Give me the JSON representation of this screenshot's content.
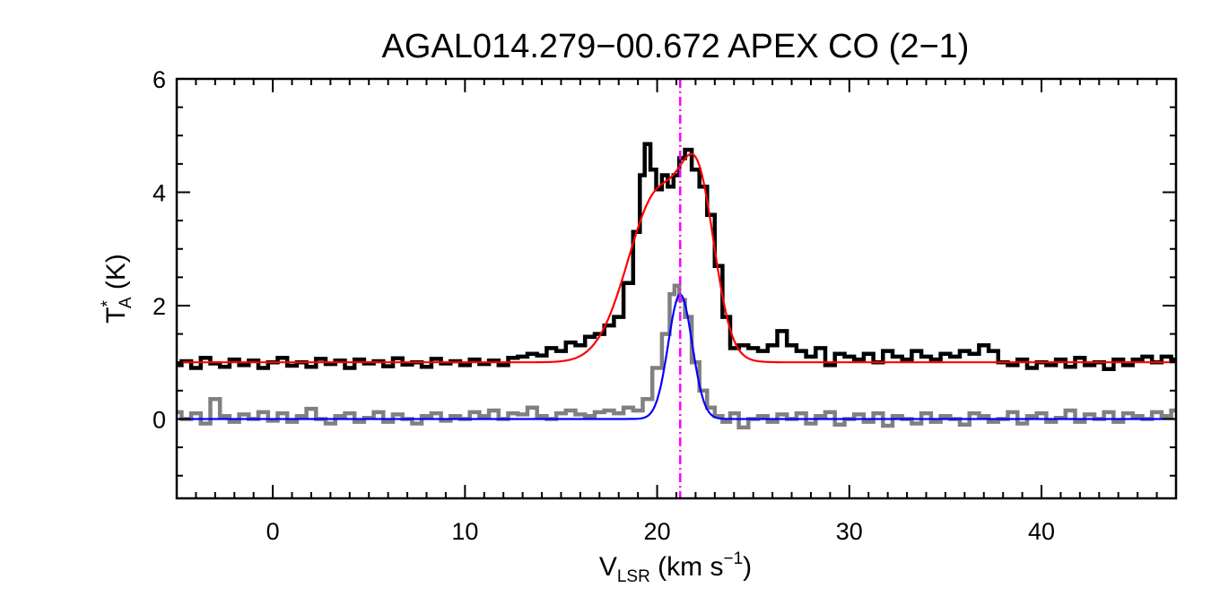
{
  "chart_data": {
    "type": "line",
    "title": "AGAL014.279−00.672  APEX CO (2−1)",
    "xlabel": {
      "main": "V",
      "sub": "LSR",
      "rest": " (km s",
      "sup": "−1",
      "close": ")"
    },
    "ylabel": {
      "main": "T",
      "sup": "*",
      "sub": "A",
      "rest": " (K)"
    },
    "xlim": [
      -5,
      47
    ],
    "ylim": [
      -1.4,
      6.0
    ],
    "xticks": [
      0,
      10,
      20,
      30,
      40
    ],
    "xtick_labels": [
      "0",
      "10",
      "20",
      "30",
      "40"
    ],
    "yticks": [
      0,
      2,
      4,
      6
    ],
    "ytick_labels": [
      "0",
      "2",
      "4",
      "6"
    ],
    "x_minor_step": 1,
    "y_minor_step": 0.5,
    "vline": {
      "x": 21.2,
      "color": "#ff00ff",
      "style": "dash-dot"
    },
    "series": [
      {
        "kind": "step",
        "color": "#000000",
        "points": [
          [
            -5,
            0.95
          ],
          [
            -4.5,
            1.02
          ],
          [
            -4,
            0.9
          ],
          [
            -3.5,
            1.08
          ],
          [
            -3,
            0.98
          ],
          [
            -2.5,
            0.92
          ],
          [
            -2,
            1.05
          ],
          [
            -1.5,
            0.95
          ],
          [
            -1,
            1.03
          ],
          [
            -0.5,
            0.9
          ],
          [
            0,
            1.0
          ],
          [
            0.5,
            1.08
          ],
          [
            1,
            0.94
          ],
          [
            1.5,
            1.0
          ],
          [
            2,
            0.92
          ],
          [
            2.5,
            1.06
          ],
          [
            3,
            0.97
          ],
          [
            3.5,
            1.03
          ],
          [
            4,
            0.9
          ],
          [
            4.5,
            1.05
          ],
          [
            5,
            0.98
          ],
          [
            5.5,
            1.02
          ],
          [
            6,
            0.93
          ],
          [
            6.5,
            1.07
          ],
          [
            7,
            0.96
          ],
          [
            7.5,
            1.0
          ],
          [
            8,
            0.92
          ],
          [
            8.5,
            1.06
          ],
          [
            9,
            0.98
          ],
          [
            9.5,
            1.02
          ],
          [
            10,
            0.95
          ],
          [
            10.5,
            1.05
          ],
          [
            11,
            0.97
          ],
          [
            11.5,
            1.03
          ],
          [
            12,
            0.95
          ],
          [
            12.5,
            1.08
          ],
          [
            13,
            1.1
          ],
          [
            13.5,
            1.15
          ],
          [
            14,
            1.12
          ],
          [
            14.5,
            1.25
          ],
          [
            15,
            1.2
          ],
          [
            15.5,
            1.35
          ],
          [
            16,
            1.3
          ],
          [
            16.5,
            1.45
          ],
          [
            17,
            1.5
          ],
          [
            17.5,
            1.65
          ],
          [
            18,
            1.8
          ],
          [
            18.5,
            2.4
          ],
          [
            19,
            3.3
          ],
          [
            19.2,
            4.3
          ],
          [
            19.5,
            4.85
          ],
          [
            19.8,
            4.4
          ],
          [
            20.1,
            4.05
          ],
          [
            20.4,
            4.3
          ],
          [
            20.7,
            4.1
          ],
          [
            21.0,
            4.3
          ],
          [
            21.3,
            4.6
          ],
          [
            21.6,
            4.75
          ],
          [
            22.0,
            4.4
          ],
          [
            22.4,
            4.1
          ],
          [
            22.8,
            3.6
          ],
          [
            23.2,
            2.7
          ],
          [
            23.6,
            1.8
          ],
          [
            24,
            1.25
          ],
          [
            24.5,
            1.3
          ],
          [
            25,
            1.25
          ],
          [
            25.5,
            1.2
          ],
          [
            26,
            1.3
          ],
          [
            26.5,
            1.55
          ],
          [
            27,
            1.3
          ],
          [
            27.5,
            1.2
          ],
          [
            28,
            1.1
          ],
          [
            28.5,
            1.25
          ],
          [
            29,
            0.95
          ],
          [
            29.5,
            1.15
          ],
          [
            30,
            1.1
          ],
          [
            30.5,
            1.05
          ],
          [
            31,
            1.15
          ],
          [
            31.5,
            1.0
          ],
          [
            32,
            1.2
          ],
          [
            32.5,
            1.1
          ],
          [
            33,
            1.05
          ],
          [
            33.5,
            1.2
          ],
          [
            34,
            1.1
          ],
          [
            34.5,
            1.05
          ],
          [
            35,
            1.15
          ],
          [
            35.5,
            1.1
          ],
          [
            36,
            1.2
          ],
          [
            36.5,
            1.15
          ],
          [
            37,
            1.3
          ],
          [
            37.5,
            1.2
          ],
          [
            38,
            1.0
          ],
          [
            38.5,
            0.95
          ],
          [
            39,
            1.05
          ],
          [
            39.5,
            0.9
          ],
          [
            40,
            1.0
          ],
          [
            40.5,
            0.95
          ],
          [
            41,
            1.05
          ],
          [
            41.5,
            0.92
          ],
          [
            42,
            1.08
          ],
          [
            42.5,
            0.95
          ],
          [
            43,
            1.0
          ],
          [
            43.5,
            0.88
          ],
          [
            44,
            1.05
          ],
          [
            44.5,
            0.95
          ],
          [
            45,
            1.05
          ],
          [
            45.5,
            1.1
          ],
          [
            46,
            1.0
          ],
          [
            46.5,
            1.1
          ],
          [
            47,
            1.05
          ]
        ]
      },
      {
        "kind": "step",
        "color": "#808080",
        "points": [
          [
            -5,
            0.12
          ],
          [
            -4.5,
            0.0
          ],
          [
            -4,
            0.1
          ],
          [
            -3.5,
            -0.08
          ],
          [
            -3,
            0.35
          ],
          [
            -2.5,
            0.05
          ],
          [
            -2,
            -0.05
          ],
          [
            -1.5,
            0.08
          ],
          [
            -1,
            0.0
          ],
          [
            -0.5,
            0.12
          ],
          [
            0,
            -0.03
          ],
          [
            0.5,
            0.1
          ],
          [
            1,
            -0.05
          ],
          [
            1.5,
            0.05
          ],
          [
            2,
            0.18
          ],
          [
            2.5,
            0.0
          ],
          [
            3,
            -0.08
          ],
          [
            3.5,
            0.05
          ],
          [
            4,
            0.1
          ],
          [
            4.5,
            -0.05
          ],
          [
            5,
            0.02
          ],
          [
            5.5,
            0.12
          ],
          [
            6,
            -0.05
          ],
          [
            6.5,
            0.08
          ],
          [
            7,
            0.0
          ],
          [
            7.5,
            -0.08
          ],
          [
            8,
            0.05
          ],
          [
            8.5,
            0.1
          ],
          [
            9,
            -0.03
          ],
          [
            9.5,
            0.05
          ],
          [
            10,
            0.0
          ],
          [
            10.5,
            0.12
          ],
          [
            11,
            0.05
          ],
          [
            11.5,
            0.15
          ],
          [
            12,
            0.0
          ],
          [
            12.5,
            0.1
          ],
          [
            13,
            0.08
          ],
          [
            13.5,
            0.2
          ],
          [
            14,
            0.05
          ],
          [
            14.5,
            0.0
          ],
          [
            15,
            0.1
          ],
          [
            15.5,
            0.15
          ],
          [
            16,
            0.08
          ],
          [
            16.5,
            0.05
          ],
          [
            17,
            0.12
          ],
          [
            17.5,
            0.15
          ],
          [
            18,
            0.1
          ],
          [
            18.5,
            0.2
          ],
          [
            19,
            0.15
          ],
          [
            19.5,
            0.35
          ],
          [
            20,
            0.9
          ],
          [
            20.5,
            1.5
          ],
          [
            20.8,
            2.2
          ],
          [
            21.0,
            2.35
          ],
          [
            21.3,
            2.1
          ],
          [
            21.6,
            1.8
          ],
          [
            22.0,
            1.0
          ],
          [
            22.4,
            0.5
          ],
          [
            22.8,
            0.2
          ],
          [
            23.2,
            0.05
          ],
          [
            23.6,
            -0.05
          ],
          [
            24,
            0.1
          ],
          [
            24.5,
            -0.15
          ],
          [
            25,
            0.0
          ],
          [
            25.5,
            0.05
          ],
          [
            26,
            -0.05
          ],
          [
            26.5,
            0.08
          ],
          [
            27,
            0.0
          ],
          [
            27.5,
            0.1
          ],
          [
            28,
            -0.08
          ],
          [
            28.5,
            0.05
          ],
          [
            29,
            0.12
          ],
          [
            29.5,
            -0.1
          ],
          [
            30,
            0.0
          ],
          [
            30.5,
            0.08
          ],
          [
            31,
            -0.05
          ],
          [
            31.5,
            0.1
          ],
          [
            32,
            -0.12
          ],
          [
            32.5,
            0.05
          ],
          [
            33,
            0.0
          ],
          [
            33.5,
            -0.08
          ],
          [
            34,
            0.1
          ],
          [
            34.5,
            -0.05
          ],
          [
            35,
            0.05
          ],
          [
            35.5,
            0.0
          ],
          [
            36,
            -0.1
          ],
          [
            36.5,
            0.1
          ],
          [
            37,
            0.05
          ],
          [
            37.5,
            -0.05
          ],
          [
            38,
            0.0
          ],
          [
            38.5,
            0.12
          ],
          [
            39,
            -0.08
          ],
          [
            39.5,
            0.05
          ],
          [
            40,
            0.1
          ],
          [
            40.5,
            -0.05
          ],
          [
            41,
            0.02
          ],
          [
            41.5,
            0.15
          ],
          [
            42,
            -0.05
          ],
          [
            42.5,
            0.08
          ],
          [
            43,
            0.0
          ],
          [
            43.5,
            0.12
          ],
          [
            44,
            -0.05
          ],
          [
            44.5,
            0.1
          ],
          [
            45,
            0.05
          ],
          [
            45.5,
            0.0
          ],
          [
            46,
            0.12
          ],
          [
            46.5,
            0.05
          ],
          [
            47,
            0.15
          ]
        ]
      },
      {
        "kind": "fit",
        "color": "#ff0000",
        "baseline": 1.0,
        "components": [
          {
            "amp": 3.0,
            "center": 20.1,
            "sigma": 1.6
          },
          {
            "amp": 2.2,
            "center": 22.2,
            "sigma": 0.85
          }
        ]
      },
      {
        "kind": "fit",
        "color": "#0000ff",
        "baseline": 0.0,
        "components": [
          {
            "amp": 2.2,
            "center": 21.2,
            "sigma": 0.62
          }
        ]
      }
    ]
  }
}
